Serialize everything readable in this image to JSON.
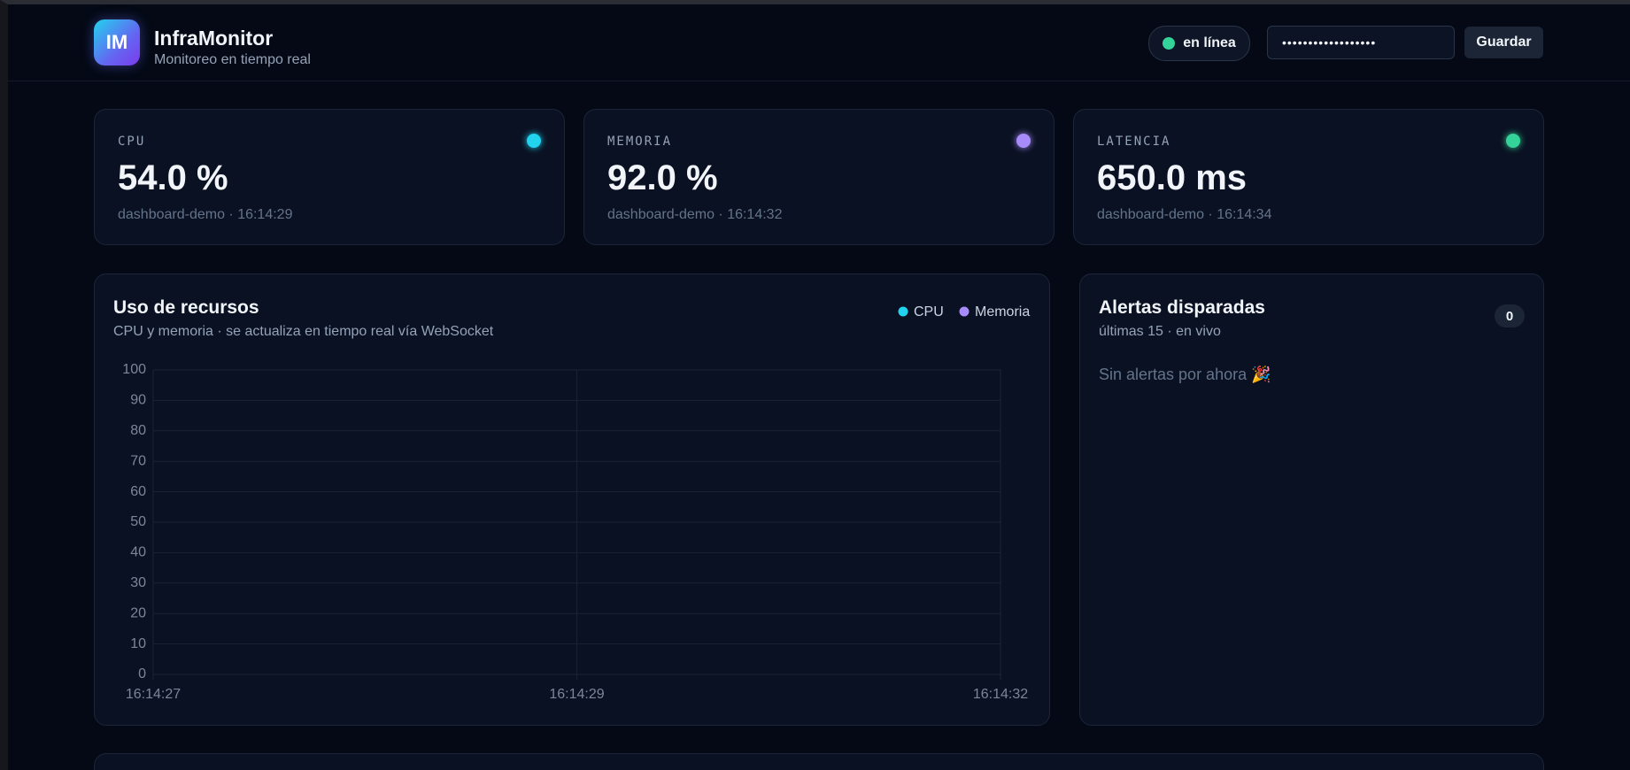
{
  "header": {
    "logo": "IM",
    "title": "InfraMonitor",
    "subtitle": "Monitoreo en tiempo real"
  },
  "status": {
    "label": "en línea",
    "color": "#34d399"
  },
  "token": {
    "masked": "••••••••••••••••••"
  },
  "save_button": "Guardar",
  "cards": [
    {
      "label": "CPU",
      "value": "54.0 %",
      "meta": "dashboard-demo · 16:14:29",
      "color": "#22d3ee"
    },
    {
      "label": "MEMORIA",
      "value": "92.0 %",
      "meta": "dashboard-demo · 16:14:32",
      "color": "#a78bfa"
    },
    {
      "label": "LATENCIA",
      "value": "650.0 ms",
      "meta": "dashboard-demo · 16:14:34",
      "color": "#34d399"
    }
  ],
  "chart_data": {
    "type": "line",
    "title": "Uso de recursos",
    "subtitle": "CPU y memoria · se actualiza en tiempo real vía WebSocket",
    "categories": [
      "16:14:27",
      "16:14:29",
      "16:14:32"
    ],
    "series": [
      {
        "name": "CPU",
        "color": "#22d3ee",
        "values": [
          null,
          null,
          null
        ]
      },
      {
        "name": "Memoria",
        "color": "#a78bfa",
        "values": [
          null,
          null,
          null
        ]
      }
    ],
    "ylim": [
      0,
      100
    ],
    "yticks": [
      0,
      10,
      20,
      30,
      40,
      50,
      60,
      70,
      80,
      90,
      100
    ],
    "grid": true
  },
  "alerts": {
    "title": "Alertas disparadas",
    "subtitle": "últimas 15 · en vivo",
    "count": "0",
    "empty": "Sin alertas por ahora 🎉"
  }
}
